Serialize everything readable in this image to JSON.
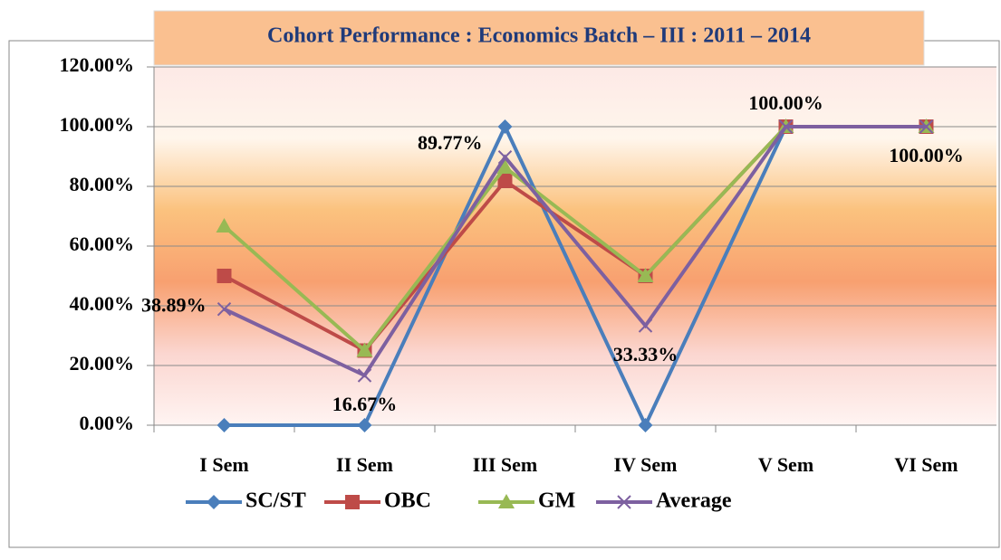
{
  "chart_data": {
    "type": "line",
    "title": "Cohort Performance : Economics Batch – III  : 2011 – 2014",
    "categories": [
      "I Sem",
      "II Sem",
      "III Sem",
      "IV Sem",
      "V Sem",
      "VI Sem"
    ],
    "series": [
      {
        "name": "SC/ST",
        "color": "#4a7ebb",
        "values": [
          0,
          0,
          100,
          0,
          100,
          100
        ]
      },
      {
        "name": "OBC",
        "color": "#be4b48",
        "values": [
          50,
          25,
          81.82,
          50,
          100,
          100
        ]
      },
      {
        "name": "GM",
        "color": "#98b954",
        "values": [
          66.67,
          25,
          86.36,
          50,
          100,
          100
        ]
      },
      {
        "name": "Average",
        "color": "#7d60a0",
        "values": [
          38.89,
          16.67,
          89.77,
          33.33,
          100,
          100
        ],
        "value_labels": [
          "38.89%",
          "16.67%",
          "89.77%",
          "33.33%",
          "100.00%",
          "100.00%"
        ]
      }
    ],
    "ylim": [
      0,
      120
    ],
    "yticks": [
      {
        "value": 0,
        "label": "0.00%"
      },
      {
        "value": 20,
        "label": "20.00%"
      },
      {
        "value": 40,
        "label": "40.00%"
      },
      {
        "value": 60,
        "label": "60.00%"
      },
      {
        "value": 80,
        "label": "80.00%"
      },
      {
        "value": 100,
        "label": "100.00%"
      },
      {
        "value": 120,
        "label": "120.00%"
      }
    ],
    "grid": true,
    "legend": "bottom"
  }
}
